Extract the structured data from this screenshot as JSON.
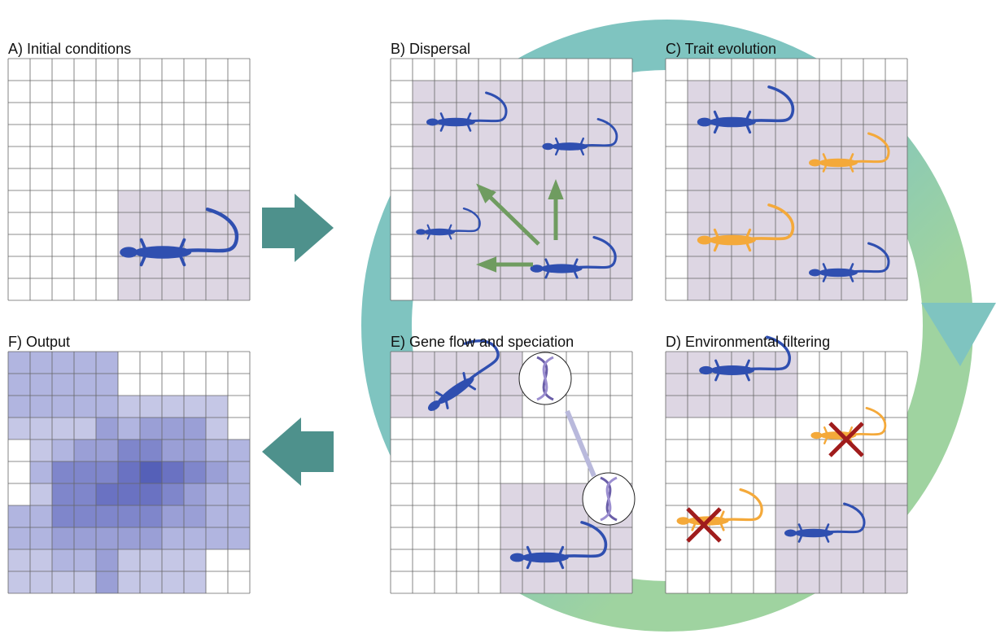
{
  "panels": {
    "a": {
      "title": "A) Initial conditions"
    },
    "b": {
      "title": "B) Dispersal"
    },
    "c": {
      "title": "C) Trait evolution"
    },
    "d": {
      "title": "D) Environmental filtering"
    },
    "e": {
      "title": "E) Gene flow and speciation"
    },
    "f": {
      "title": "F) Output"
    }
  }
}
